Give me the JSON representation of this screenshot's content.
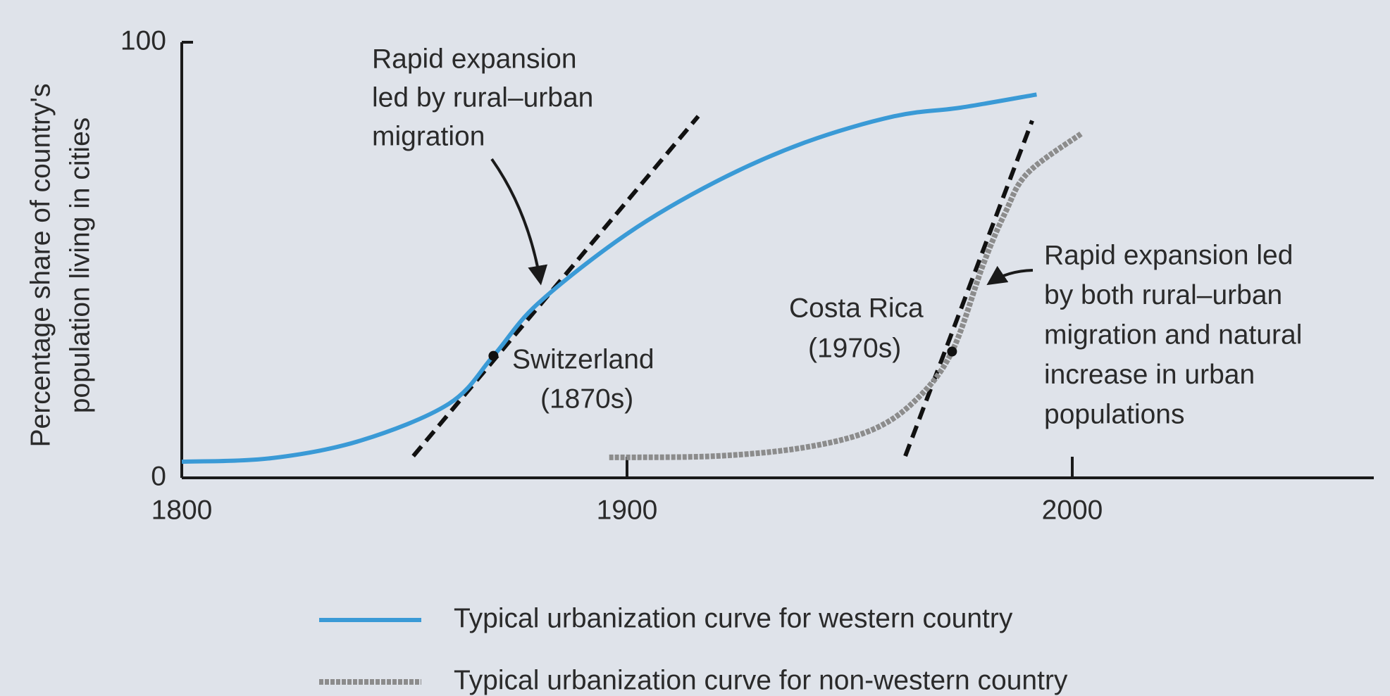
{
  "chart_data": {
    "type": "line",
    "ylabel": [
      "Percentage share of country's",
      "population living in cities"
    ],
    "xlim": [
      1800,
      2067
    ],
    "ylim": [
      0,
      100
    ],
    "xticks": [
      1800,
      1900,
      2000
    ],
    "yticks": [
      0,
      100
    ],
    "series": [
      {
        "name": "Typical urbanization curve for western country",
        "color": "#3a9ad6",
        "x": [
          1800,
          1820,
          1840,
          1860,
          1870,
          1880,
          1900,
          1920,
          1940,
          1960,
          1975,
          1992
        ],
        "values": [
          3.7,
          4.5,
          8.5,
          17,
          28,
          40,
          56,
          68,
          77,
          83,
          85,
          88
        ]
      },
      {
        "name": "Typical urbanization curve for non-western country",
        "color": "#8c8c8c",
        "x": [
          1896,
          1920,
          1940,
          1955,
          1965,
          1973,
          1980,
          1985,
          1990,
          2002
        ],
        "values": [
          4.7,
          5,
          7,
          11,
          18,
          29,
          49,
          61,
          70,
          79
        ]
      }
    ],
    "tangents": [
      {
        "x": [
          1852,
          1916
        ],
        "y": [
          5,
          83
        ]
      },
      {
        "x": [
          1962.5,
          1991
        ],
        "y": [
          5,
          82
        ]
      }
    ],
    "highlights": [
      {
        "label": [
          "Switzerland",
          "(1870s)"
        ],
        "x": 1870,
        "y": 28
      },
      {
        "label": [
          "Costa Rica",
          "(1970s)"
        ],
        "x": 1973,
        "y": 29
      }
    ],
    "annotations": [
      [
        "Rapid expansion",
        "led by rural–urban",
        "migration"
      ],
      [
        "Rapid expansion led",
        "by both rural–urban",
        "migration and natural",
        "increase in urban",
        "populations"
      ]
    ]
  }
}
